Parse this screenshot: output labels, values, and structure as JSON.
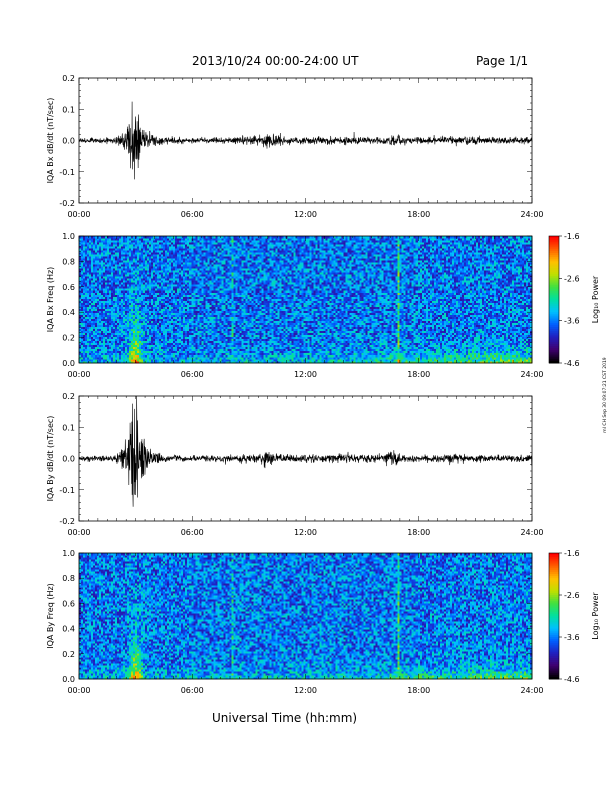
{
  "header": {
    "date_range": "2013/10/24  00:00-24:00 UT",
    "page": "Page 1/1"
  },
  "footer": {
    "x_axis_title": "Universal Time (hh:mm)",
    "side_note": "ml CH Sep 30 09:07:21 CST 2019"
  },
  "x_ticks": [
    "00:00",
    "06:00",
    "12:00",
    "18:00",
    "24:00"
  ],
  "colorbar": {
    "ticks": [
      "-1.6",
      "-2.6",
      "-3.6",
      "-4.6"
    ],
    "label": "Log₁₀ Power",
    "colors": [
      "#000000",
      "#400070",
      "#2020c0",
      "#0060ff",
      "#00c0ff",
      "#00e0a0",
      "#40e040",
      "#c0e000",
      "#ffc000",
      "#ff6000",
      "#ff0000"
    ]
  },
  "chart_data": [
    {
      "type": "line",
      "id": "bx_waveform",
      "ylabel": "IQA Bx dB/dt (nT/sec)",
      "ylim": [
        -0.2,
        0.2
      ],
      "yticks": [
        "0.2",
        "0.1",
        "0.0",
        "-0.1",
        "-0.2"
      ],
      "xlim": [
        0,
        24
      ],
      "envelope": {
        "hours": [
          0,
          1,
          2,
          2.3,
          2.6,
          2.8,
          3.0,
          3.2,
          3.4,
          3.8,
          4.5,
          6,
          8,
          9.5,
          10,
          10.4,
          11,
          12,
          13,
          14,
          15,
          16,
          16.7,
          17.2,
          18,
          19,
          20,
          21,
          22,
          23,
          24
        ],
        "amplitude": [
          0.008,
          0.009,
          0.012,
          0.03,
          0.07,
          0.11,
          0.13,
          0.1,
          0.06,
          0.025,
          0.012,
          0.009,
          0.01,
          0.02,
          0.035,
          0.02,
          0.012,
          0.012,
          0.014,
          0.015,
          0.014,
          0.012,
          0.02,
          0.012,
          0.012,
          0.012,
          0.014,
          0.013,
          0.012,
          0.012,
          0.012
        ]
      },
      "color": "#000000"
    },
    {
      "type": "heatmap",
      "id": "bx_spectrogram",
      "ylabel": "IQA Bx Freq (Hz)",
      "ylim": [
        0,
        1.0
      ],
      "yticks": [
        "1.0",
        "0.8",
        "0.6",
        "0.4",
        "0.2",
        "0.0"
      ],
      "xlim": [
        0,
        24
      ],
      "color_range": [
        -4.6,
        -1.6
      ]
    },
    {
      "type": "line",
      "id": "by_waveform",
      "ylabel": "IQA By dB/dt (nT/sec)",
      "ylim": [
        -0.2,
        0.2
      ],
      "yticks": [
        "0.2",
        "0.1",
        "0.0",
        "-0.1",
        "-0.2"
      ],
      "xlim": [
        0,
        24
      ],
      "envelope": {
        "hours": [
          0,
          1,
          2,
          2.3,
          2.6,
          2.8,
          3.0,
          3.2,
          3.4,
          3.8,
          4.5,
          6,
          8,
          9.5,
          10,
          10.4,
          11,
          12,
          13,
          14,
          15,
          16,
          16.7,
          17.2,
          18,
          19,
          20,
          21,
          22,
          23,
          24
        ],
        "amplitude": [
          0.008,
          0.01,
          0.015,
          0.04,
          0.1,
          0.17,
          0.2,
          0.15,
          0.08,
          0.03,
          0.014,
          0.01,
          0.01,
          0.02,
          0.04,
          0.022,
          0.013,
          0.013,
          0.014,
          0.016,
          0.015,
          0.013,
          0.03,
          0.013,
          0.012,
          0.012,
          0.015,
          0.013,
          0.012,
          0.012,
          0.012
        ]
      },
      "color": "#000000"
    },
    {
      "type": "heatmap",
      "id": "by_spectrogram",
      "ylabel": "IQA By Freq (Hz)",
      "ylim": [
        0,
        1.0
      ],
      "yticks": [
        "1.0",
        "0.8",
        "0.6",
        "0.4",
        "0.2",
        "0.0"
      ],
      "xlim": [
        0,
        24
      ],
      "color_range": [
        -4.6,
        -1.6
      ]
    }
  ]
}
